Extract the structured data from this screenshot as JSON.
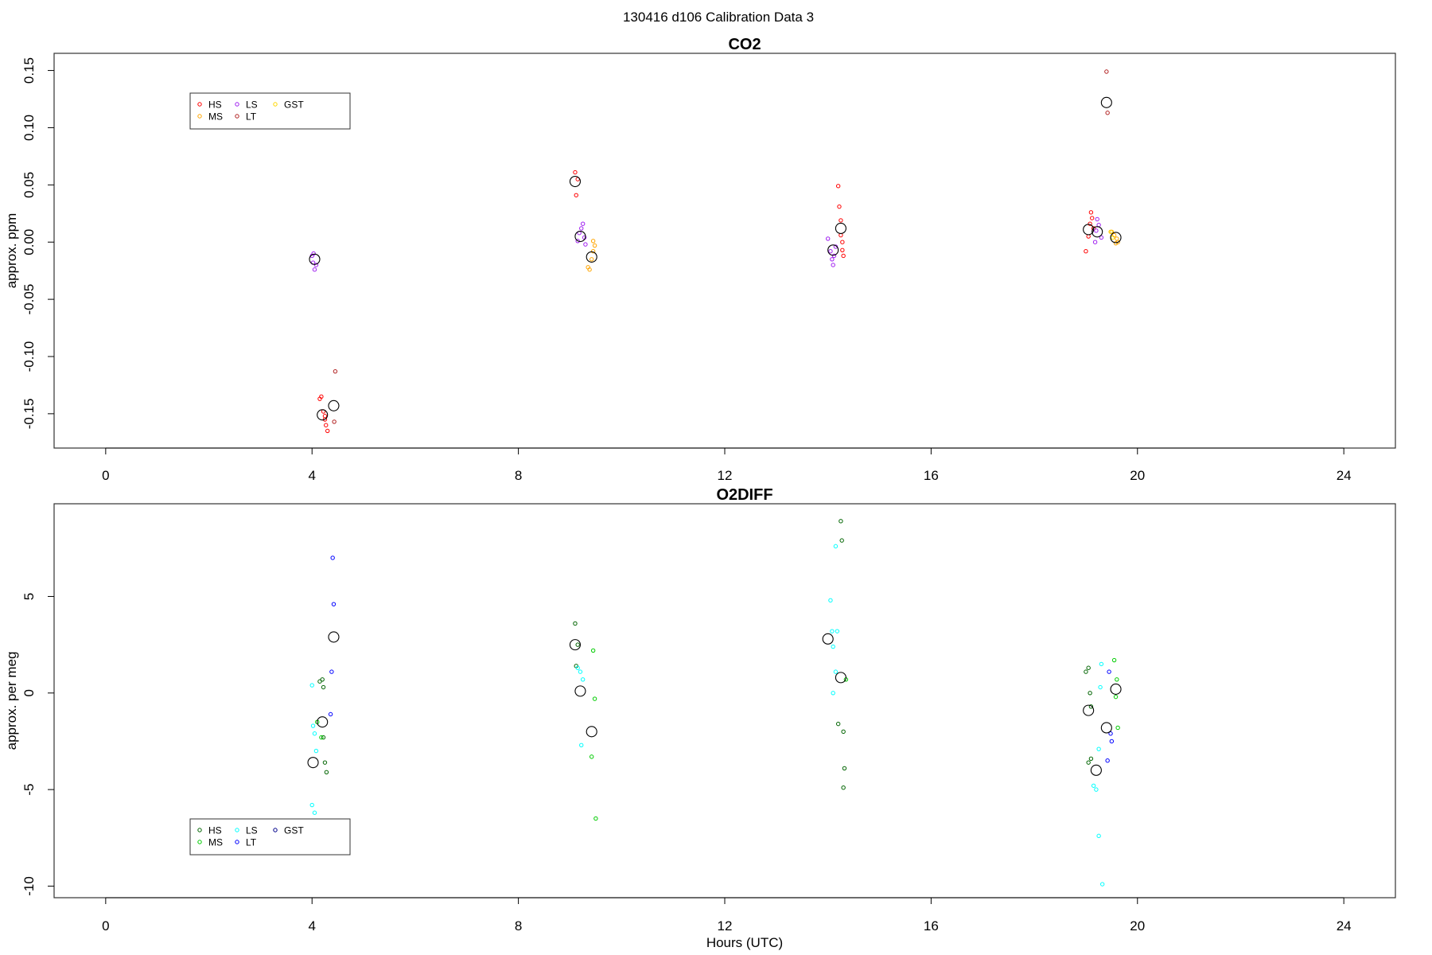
{
  "figure": {
    "suptitle": "130416   d106   Calibration Data 3"
  },
  "chart_data": [
    {
      "type": "scatter",
      "title": "CO2",
      "xlabel": "",
      "ylabel": "approx. ppm",
      "xlim": [
        -1.0,
        25.0
      ],
      "ylim": [
        -0.18,
        0.165
      ],
      "xticks": [
        "0",
        "4",
        "8",
        "12",
        "16",
        "20",
        "24"
      ],
      "yticks": [
        "0.15",
        "0.10",
        "0.05",
        "0.00",
        "-0.05",
        "-0.10",
        "-0.15"
      ],
      "grid": false,
      "legend_position": "top-left",
      "legend": [
        {
          "name": "HS",
          "color": "#ff0000"
        },
        {
          "name": "MS",
          "color": "#ffa500"
        },
        {
          "name": "LS",
          "color": "#a020f0"
        },
        {
          "name": "LT",
          "color": "#b22222"
        },
        {
          "name": "GST",
          "color": "#ffd700"
        }
      ],
      "series": [
        {
          "name": "HS",
          "color": "#ff0000",
          "x": [
            4.15,
            4.18,
            4.22,
            4.25,
            4.27,
            4.3,
            4.25,
            9.1,
            9.12,
            9.15,
            14.2,
            14.22,
            14.25,
            14.25,
            14.28,
            14.28,
            14.3,
            19.0,
            19.05,
            19.08,
            19.1,
            19.12,
            19.15
          ],
          "y": [
            -0.137,
            -0.135,
            -0.148,
            -0.155,
            -0.16,
            -0.165,
            -0.152,
            0.061,
            0.041,
            0.055,
            0.049,
            0.031,
            0.019,
            0.006,
            0.0,
            -0.007,
            -0.012,
            -0.008,
            0.005,
            0.016,
            0.026,
            0.021,
            0.012
          ]
        },
        {
          "name": "MS",
          "color": "#ffa500",
          "x": [
            9.35,
            9.38,
            9.42,
            9.45,
            9.45,
            9.48,
            19.5,
            19.55,
            19.6,
            19.62,
            19.58
          ],
          "y": [
            -0.022,
            -0.024,
            -0.015,
            -0.008,
            0.001,
            -0.003,
            0.009,
            0.006,
            0.003,
            0.0,
            -0.001
          ]
        },
        {
          "name": "LS",
          "color": "#a020f0",
          "x": [
            4.0,
            4.02,
            4.05,
            4.08,
            4.03,
            9.15,
            9.18,
            9.22,
            9.25,
            9.28,
            9.3,
            14.0,
            14.05,
            14.08,
            14.1,
            14.12,
            14.15,
            19.2,
            19.25,
            19.3,
            19.22,
            19.18
          ],
          "y": [
            -0.012,
            -0.018,
            -0.024,
            -0.02,
            -0.01,
            0.001,
            0.008,
            0.012,
            0.016,
            0.004,
            -0.002,
            0.003,
            -0.008,
            -0.015,
            -0.02,
            -0.012,
            -0.004,
            0.01,
            0.015,
            0.004,
            0.02,
            0.0
          ]
        },
        {
          "name": "LT",
          "color": "#b22222",
          "x": [
            4.45,
            4.43,
            19.4,
            19.42
          ],
          "y": [
            -0.113,
            -0.157,
            0.149,
            0.113
          ]
        },
        {
          "name": "GST",
          "color": "#ffd700",
          "x": [
            19.48,
            19.52
          ],
          "y": [
            0.009,
            0.004
          ]
        },
        {
          "name": "",
          "color": "#000000",
          "marker": "mean",
          "x": [
            4.05,
            4.2,
            4.42,
            9.1,
            9.2,
            9.42,
            14.1,
            14.25,
            19.05,
            19.22,
            19.4,
            19.58
          ],
          "y": [
            -0.015,
            -0.151,
            -0.143,
            0.053,
            0.005,
            -0.013,
            -0.007,
            0.012,
            0.011,
            0.009,
            0.122,
            0.004
          ]
        }
      ]
    },
    {
      "type": "scatter",
      "title": "O2DIFF",
      "xlabel": "Hours (UTC)",
      "ylabel": "approx. per meg",
      "xlim": [
        -1.0,
        25.0
      ],
      "ylim": [
        -10.6,
        9.8
      ],
      "xticks": [
        "0",
        "4",
        "8",
        "12",
        "16",
        "20",
        "24"
      ],
      "yticks": [
        "5",
        "0",
        "-5",
        "-10"
      ],
      "grid": false,
      "legend_position": "bottom-left",
      "legend": [
        {
          "name": "HS",
          "color": "#006400"
        },
        {
          "name": "MS",
          "color": "#00cc00"
        },
        {
          "name": "LS",
          "color": "#00ffff"
        },
        {
          "name": "LT",
          "color": "#0000ff"
        },
        {
          "name": "GST",
          "color": "#00008b"
        }
      ],
      "series": [
        {
          "name": "HS",
          "color": "#006400",
          "x": [
            4.15,
            4.2,
            4.22,
            4.22,
            4.25,
            4.28,
            9.1,
            9.12,
            9.15,
            14.25,
            14.27,
            14.2,
            14.3,
            14.32,
            14.3,
            19.0,
            19.05,
            19.08,
            19.1,
            19.05,
            19.1
          ],
          "y": [
            0.6,
            0.7,
            0.3,
            -2.3,
            -3.6,
            -4.1,
            3.6,
            1.4,
            2.5,
            8.9,
            7.9,
            -1.6,
            -2.0,
            -3.9,
            -4.9,
            1.1,
            1.3,
            0.0,
            -0.7,
            -3.6,
            -3.4
          ]
        },
        {
          "name": "MS",
          "color": "#00cc00",
          "x": [
            4.1,
            4.18,
            9.45,
            9.48,
            9.42,
            9.5,
            14.35,
            19.55,
            19.6,
            19.62,
            19.58
          ],
          "y": [
            -1.5,
            -2.3,
            2.2,
            -0.3,
            -3.3,
            -6.5,
            0.7,
            1.7,
            0.7,
            -1.8,
            -0.2
          ]
        },
        {
          "name": "LS",
          "color": "#00ffff",
          "x": [
            4.0,
            4.02,
            4.05,
            4.08,
            4.0,
            4.05,
            9.15,
            9.2,
            9.25,
            9.22,
            14.05,
            14.08,
            14.1,
            14.15,
            14.18,
            14.1,
            14.15,
            19.15,
            19.2,
            19.25,
            19.28,
            19.3,
            19.25,
            19.32
          ],
          "y": [
            0.4,
            -1.7,
            -2.1,
            -3.0,
            -5.8,
            -6.2,
            1.3,
            1.1,
            0.7,
            -2.7,
            4.8,
            3.2,
            2.4,
            7.6,
            3.2,
            0.0,
            1.1,
            -4.8,
            -5.0,
            -2.9,
            0.3,
            1.5,
            -7.4,
            -9.9
          ]
        },
        {
          "name": "LT",
          "color": "#0000ff",
          "x": [
            4.4,
            4.42,
            4.38,
            4.36,
            19.45,
            19.48,
            19.5,
            19.42
          ],
          "y": [
            7.0,
            4.6,
            1.1,
            -1.1,
            1.1,
            -2.1,
            -2.5,
            -3.5
          ]
        },
        {
          "name": "GST",
          "color": "#00008b",
          "x": [],
          "y": []
        },
        {
          "name": "",
          "color": "#000000",
          "marker": "mean",
          "x": [
            4.02,
            4.2,
            4.42,
            9.1,
            9.2,
            9.42,
            14.0,
            14.25,
            19.05,
            19.2,
            19.4,
            19.58
          ],
          "y": [
            -3.6,
            -1.5,
            2.9,
            2.5,
            0.1,
            -2.0,
            2.8,
            0.8,
            -0.9,
            -4.0,
            -1.8,
            0.2
          ]
        }
      ]
    }
  ]
}
